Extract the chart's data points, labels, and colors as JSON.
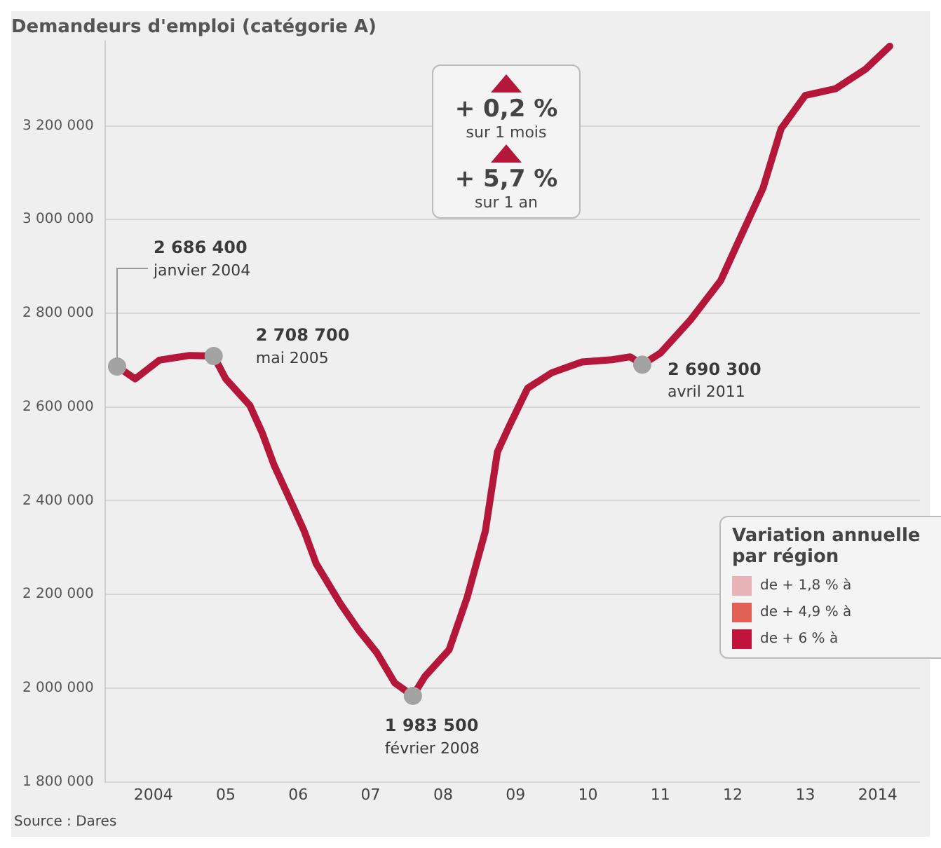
{
  "chart_data": {
    "type": "line",
    "title": "Demandeurs d'emploi (catégorie A)",
    "x": [
      "2004-01",
      "2004-04",
      "2004-08",
      "2005-01",
      "2005-05",
      "2005-07",
      "2005-11",
      "2006-01",
      "2006-03",
      "2006-06",
      "2006-08",
      "2006-10",
      "2007-02",
      "2007-05",
      "2007-08",
      "2007-11",
      "2008-02",
      "2008-04",
      "2008-08",
      "2008-11",
      "2009-02",
      "2009-04",
      "2009-06",
      "2009-09",
      "2010-01",
      "2010-06",
      "2010-11",
      "2011-02",
      "2011-04",
      "2011-07",
      "2011-12",
      "2012-05",
      "2012-08",
      "2012-12",
      "2013-03",
      "2013-07",
      "2013-12",
      "2014-05",
      "2014-09"
    ],
    "series": [
      {
        "color": "#b5173a",
        "marker": "none",
        "values": [
          2686400,
          2660000,
          2700000,
          2710000,
          2708700,
          2660000,
          2603000,
          2546000,
          2476000,
          2392000,
          2335000,
          2265000,
          2180000,
          2124000,
          2076000,
          2011000,
          1983500,
          2025000,
          2082000,
          2194000,
          2335000,
          2504000,
          2560000,
          2640000,
          2673000,
          2696000,
          2701000,
          2707000,
          2690300,
          2715000,
          2786000,
          2870000,
          2955000,
          3067000,
          3194000,
          3265000,
          3279000,
          3321000,
          3370000
        ]
      },
      {
        "type": "scatter",
        "color": "#a3a3a3",
        "marker": "circle",
        "x": [
          "2004-01",
          "2005-05",
          "2008-02",
          "2011-04"
        ],
        "values": [
          2686400,
          2708700,
          1983500,
          2690300
        ]
      }
    ],
    "xlim": [
      "2003-11",
      "2015-02"
    ],
    "xticks": [
      {
        "value": "2004-07",
        "label": "2004"
      },
      {
        "value": "2005-07",
        "label": "05"
      },
      {
        "value": "2006-07",
        "label": "06"
      },
      {
        "value": "2007-07",
        "label": "07"
      },
      {
        "value": "2008-07",
        "label": "08"
      },
      {
        "value": "2009-07",
        "label": "09"
      },
      {
        "value": "2010-07",
        "label": "10"
      },
      {
        "value": "2011-07",
        "label": "11"
      },
      {
        "value": "2012-07",
        "label": "12"
      },
      {
        "value": "2013-07",
        "label": "13"
      },
      {
        "value": "2014-07",
        "label": "2014"
      }
    ],
    "ylim": [
      1800000,
      3380000
    ],
    "yticks": [
      {
        "value": 1800000,
        "label": "1 800 000"
      },
      {
        "value": 2000000,
        "label": "2 000 000"
      },
      {
        "value": 2200000,
        "label": "2 200 000"
      },
      {
        "value": 2400000,
        "label": "2 400 000"
      },
      {
        "value": 2600000,
        "label": "2 600 000"
      },
      {
        "value": 2800000,
        "label": "2 800 000"
      },
      {
        "value": 3000000,
        "label": "3 000 000"
      },
      {
        "value": 3200000,
        "label": "3 200 000"
      }
    ],
    "grid": "y",
    "legend": false,
    "annotations": [
      {
        "text": "2 686 400\njanvier 2004",
        "x": "2004-01",
        "y": 2686400
      },
      {
        "text": "2 708 700\nmai 2005",
        "x": "2005-05",
        "y": 2708700
      },
      {
        "text": "1 983 500\nfévrier 2008",
        "x": "2008-02",
        "y": 1983500
      },
      {
        "text": "2 690 300\navril 2011",
        "x": "2011-04",
        "y": 2690300
      },
      "+ 0,2 %",
      "sur 1 mois",
      "+ 5,7 %",
      "sur 1 an",
      "Variation annuelle par région",
      "de + 1,8 % à",
      "de + 4,9 % à",
      "de + 6 % à",
      "Source : Dares"
    ]
  }
}
